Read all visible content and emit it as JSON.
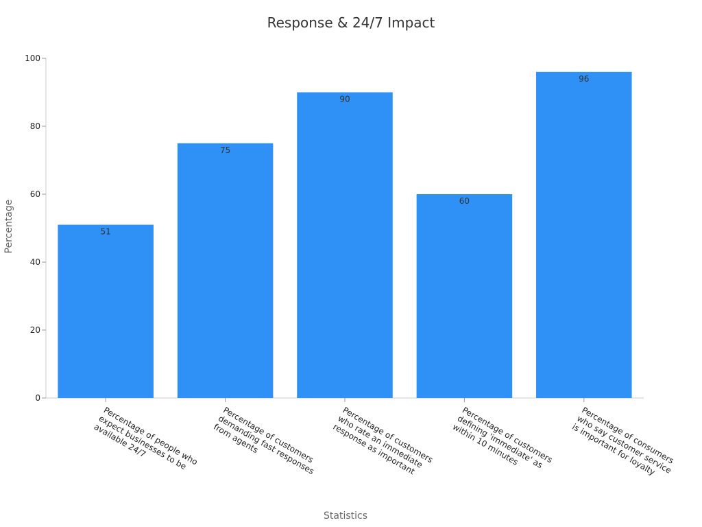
{
  "chart_data": {
    "type": "bar",
    "title": "Response & 24/7 Impact",
    "x_label": "Statistics",
    "y_label": "Percentage",
    "categories": [
      "Percentage of people who expect businesses to be available 24/7",
      "Percentage of customers demanding fast responses from agents",
      "Percentage of customers who rate an immediate response as important",
      "Percentage of customers defining 'immediate' as within 10 minutes",
      "Percentage of consumers who say customer service is important for loyalty"
    ],
    "values": [
      51,
      75,
      90,
      60,
      96
    ],
    "color": "#2f91f5",
    "ylim": [
      0,
      100
    ],
    "yticks": [
      0,
      20,
      40,
      60,
      80,
      100
    ],
    "grid": false
  }
}
